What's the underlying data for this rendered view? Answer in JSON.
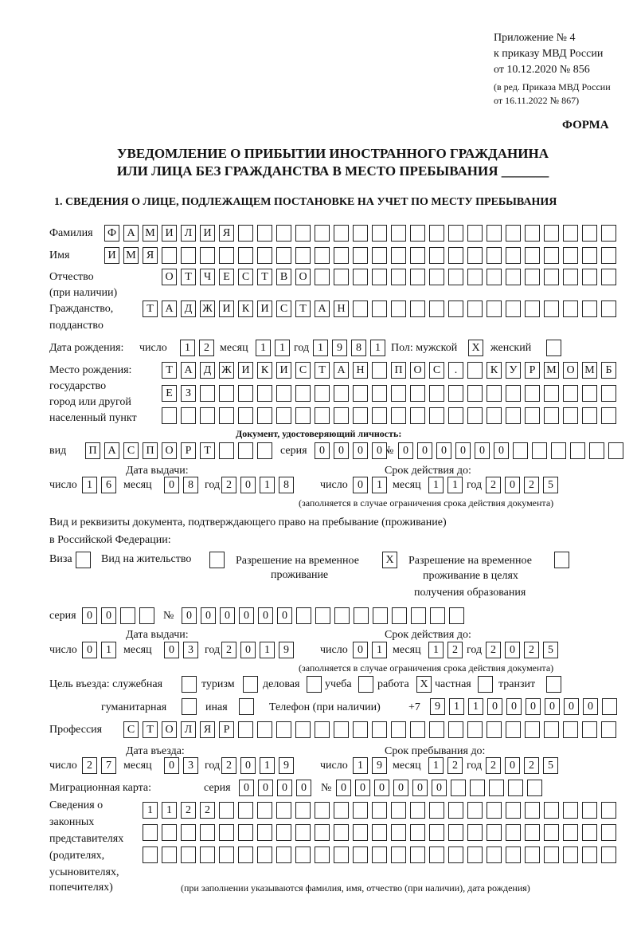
{
  "header": {
    "appendix": [
      "Приложение № 4",
      "к приказу МВД России",
      "от 10.12.2020 № 856"
    ],
    "revision": [
      "(в ред. Приказа МВД России",
      "от 16.11.2022 № 867)"
    ],
    "form_label": "ФОРМА",
    "title_line1": "УВЕДОМЛЕНИЕ О ПРИБЫТИИ ИНОСТРАННОГО ГРАЖДАНИНА",
    "title_line2": "ИЛИ ЛИЦА БЕЗ ГРАЖДАНСТВА В МЕСТО ПРЕБЫВАНИЯ _______",
    "section1": "1. СВЕДЕНИЯ О ЛИЦЕ, ПОДЛЕЖАЩЕМ ПОСТАНОВКЕ НА УЧЕТ ПО МЕСТУ ПРЕБЫВАНИЯ"
  },
  "labels": {
    "surname": "Фамилия",
    "name": "Имя",
    "patronymic": "Отчество",
    "patronymic_note": "(при наличии)",
    "citizenship": "Гражданство,",
    "citizenship2": "подданство",
    "birth_date": "Дата рождения:",
    "day": "число",
    "month": "месяц",
    "year": "год",
    "sex": "Пол: мужской",
    "female": "женский",
    "birthplace": [
      "Место рождения:",
      "государство",
      "город или другой",
      "населенный пункт"
    ],
    "id_doc": "Документ, удостоверяющий личность:",
    "kind": "вид",
    "series": "серия",
    "number": "№",
    "issue_date": "Дата выдачи:",
    "valid_until": "Срок действия до:",
    "validity_note": "(заполняется в случае ограничения срока действия документа)",
    "right_doc1": "Вид и реквизиты документа, подтверждающего право на пребывание (проживание)",
    "right_doc2": "в Российской Федерации:",
    "visa": "Виза",
    "residence": "Вид на жительство",
    "temp_permit": [
      "Разрешение на временное",
      "проживание"
    ],
    "temp_permit_edu": [
      "Разрешение на временное",
      "проживание в целях",
      "получения образования"
    ],
    "purpose": "Цель въезда: служебная",
    "tourism": "туризм",
    "business": "деловая",
    "study": "учеба",
    "work": "работа",
    "private": "частная",
    "transit": "транзит",
    "humanitarian": "гуманитарная",
    "other": "иная",
    "phone": "Телефон (при наличии)",
    "phone_prefix": "+7",
    "profession": "Профессия",
    "entry_date": "Дата въезда:",
    "stay_until": "Срок пребывания до:",
    "migration_card": "Миграционная карта:",
    "representatives": [
      "Сведения о",
      "законных",
      "представителях",
      "(родителях,",
      "усыновителях,",
      "попечителях)"
    ],
    "rep_note": "(при заполнении указываются фамилия, имя, отчество (при наличии), дата рождения)"
  },
  "fields": {
    "surname": "ФАМИЛИЯ",
    "name": "ИМЯ",
    "patronymic": "ОТЧЕСТВО",
    "citizenship": "ТАДЖИКИСТАН",
    "birth_day": "12",
    "birth_month": "11",
    "birth_year": "1981",
    "sex_male": "X",
    "sex_female": "",
    "birthplace_1": "ТАДЖИКИСТАН ПОС. КУРМОМБ",
    "birthplace_2": "ЕЗ",
    "birthplace_3": "",
    "id_kind": "ПАСПОРТ",
    "id_series": "0000",
    "id_number": "000000",
    "id_issue_day": "16",
    "id_issue_month": "08",
    "id_issue_year": "2018",
    "id_valid_day": "01",
    "id_valid_month": "11",
    "id_valid_year": "2025",
    "visa": "",
    "residence": "",
    "temp_permit": "X",
    "temp_permit_edu": "",
    "rd_series": "00",
    "rd_number": "000000",
    "rd_issue_day": "01",
    "rd_issue_month": "03",
    "rd_issue_year": "2019",
    "rd_valid_day": "01",
    "rd_valid_month": "12",
    "rd_valid_year": "2025",
    "purpose_service": "",
    "purpose_tourism": "",
    "purpose_business": "",
    "purpose_study": "",
    "purpose_work": "X",
    "purpose_private": "",
    "purpose_transit": "",
    "purpose_humanitarian": "",
    "purpose_other": "",
    "phone": "911000000",
    "profession": "СТОЛЯР",
    "entry_day": "27",
    "entry_month": "03",
    "entry_year": "2019",
    "stay_day": "19",
    "stay_month": "12",
    "stay_year": "2025",
    "mc_series": "0000",
    "mc_number": "000000",
    "rep_1": "1122",
    "rep_2": "",
    "rep_3": ""
  }
}
